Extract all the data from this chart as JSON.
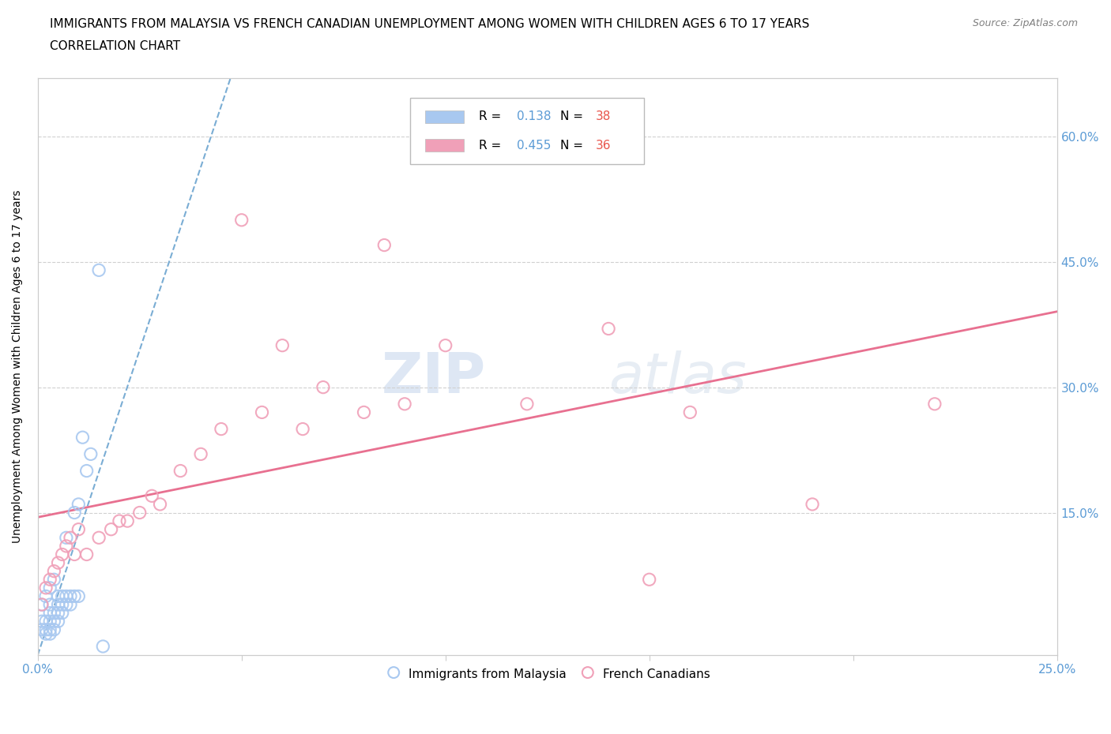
{
  "title_line1": "IMMIGRANTS FROM MALAYSIA VS FRENCH CANADIAN UNEMPLOYMENT AMONG WOMEN WITH CHILDREN AGES 6 TO 17 YEARS",
  "title_line2": "CORRELATION CHART",
  "source_text": "Source: ZipAtlas.com",
  "ylabel": "Unemployment Among Women with Children Ages 6 to 17 years",
  "xlim": [
    0.0,
    0.25
  ],
  "ylim": [
    -0.02,
    0.67
  ],
  "xticks": [
    0.0,
    0.05,
    0.1,
    0.15,
    0.2,
    0.25
  ],
  "yticks": [
    0.15,
    0.3,
    0.45,
    0.6
  ],
  "xtick_labels": [
    "0.0%",
    "",
    "",
    "",
    "",
    "25.0%"
  ],
  "ytick_labels": [
    "15.0%",
    "30.0%",
    "45.0%",
    "60.0%"
  ],
  "blue_color": "#a8c8f0",
  "pink_color": "#f0a0b8",
  "blue_line_color": "#7aadd4",
  "pink_line_color": "#e87090",
  "blue_label": "Immigrants from Malaysia",
  "pink_label": "French Canadians",
  "R_blue": 0.138,
  "N_blue": 38,
  "R_pink": 0.455,
  "N_pink": 36,
  "legend_R_color": "#5b9bd5",
  "legend_N_color": "#e8534a",
  "watermark_zip": "ZIP",
  "watermark_atlas": "atlas",
  "blue_scatter_x": [
    0.001,
    0.001,
    0.001,
    0.002,
    0.002,
    0.002,
    0.002,
    0.003,
    0.003,
    0.003,
    0.003,
    0.003,
    0.003,
    0.004,
    0.004,
    0.004,
    0.004,
    0.005,
    0.005,
    0.005,
    0.005,
    0.006,
    0.006,
    0.006,
    0.007,
    0.007,
    0.007,
    0.008,
    0.008,
    0.009,
    0.009,
    0.01,
    0.01,
    0.011,
    0.012,
    0.013,
    0.015,
    0.016
  ],
  "blue_scatter_y": [
    0.01,
    0.02,
    0.04,
    0.005,
    0.01,
    0.02,
    0.05,
    0.005,
    0.01,
    0.02,
    0.03,
    0.04,
    0.06,
    0.01,
    0.02,
    0.03,
    0.07,
    0.02,
    0.03,
    0.04,
    0.05,
    0.03,
    0.04,
    0.05,
    0.04,
    0.05,
    0.12,
    0.04,
    0.05,
    0.05,
    0.15,
    0.05,
    0.16,
    0.24,
    0.2,
    0.22,
    0.44,
    -0.01
  ],
  "pink_scatter_x": [
    0.001,
    0.002,
    0.003,
    0.004,
    0.005,
    0.006,
    0.007,
    0.008,
    0.009,
    0.01,
    0.012,
    0.015,
    0.018,
    0.02,
    0.022,
    0.025,
    0.028,
    0.03,
    0.035,
    0.04,
    0.045,
    0.05,
    0.055,
    0.06,
    0.065,
    0.07,
    0.08,
    0.085,
    0.09,
    0.1,
    0.12,
    0.14,
    0.15,
    0.16,
    0.19,
    0.22
  ],
  "pink_scatter_y": [
    0.04,
    0.06,
    0.07,
    0.08,
    0.09,
    0.1,
    0.11,
    0.12,
    0.1,
    0.13,
    0.1,
    0.12,
    0.13,
    0.14,
    0.14,
    0.15,
    0.17,
    0.16,
    0.2,
    0.22,
    0.25,
    0.5,
    0.27,
    0.35,
    0.25,
    0.3,
    0.27,
    0.47,
    0.28,
    0.35,
    0.28,
    0.37,
    0.07,
    0.27,
    0.16,
    0.28
  ],
  "grid_color": "#d0d0d0",
  "background_color": "#ffffff",
  "title_fontsize": 11,
  "tick_label_color": "#5b9bd5",
  "axis_color": "#cccccc"
}
